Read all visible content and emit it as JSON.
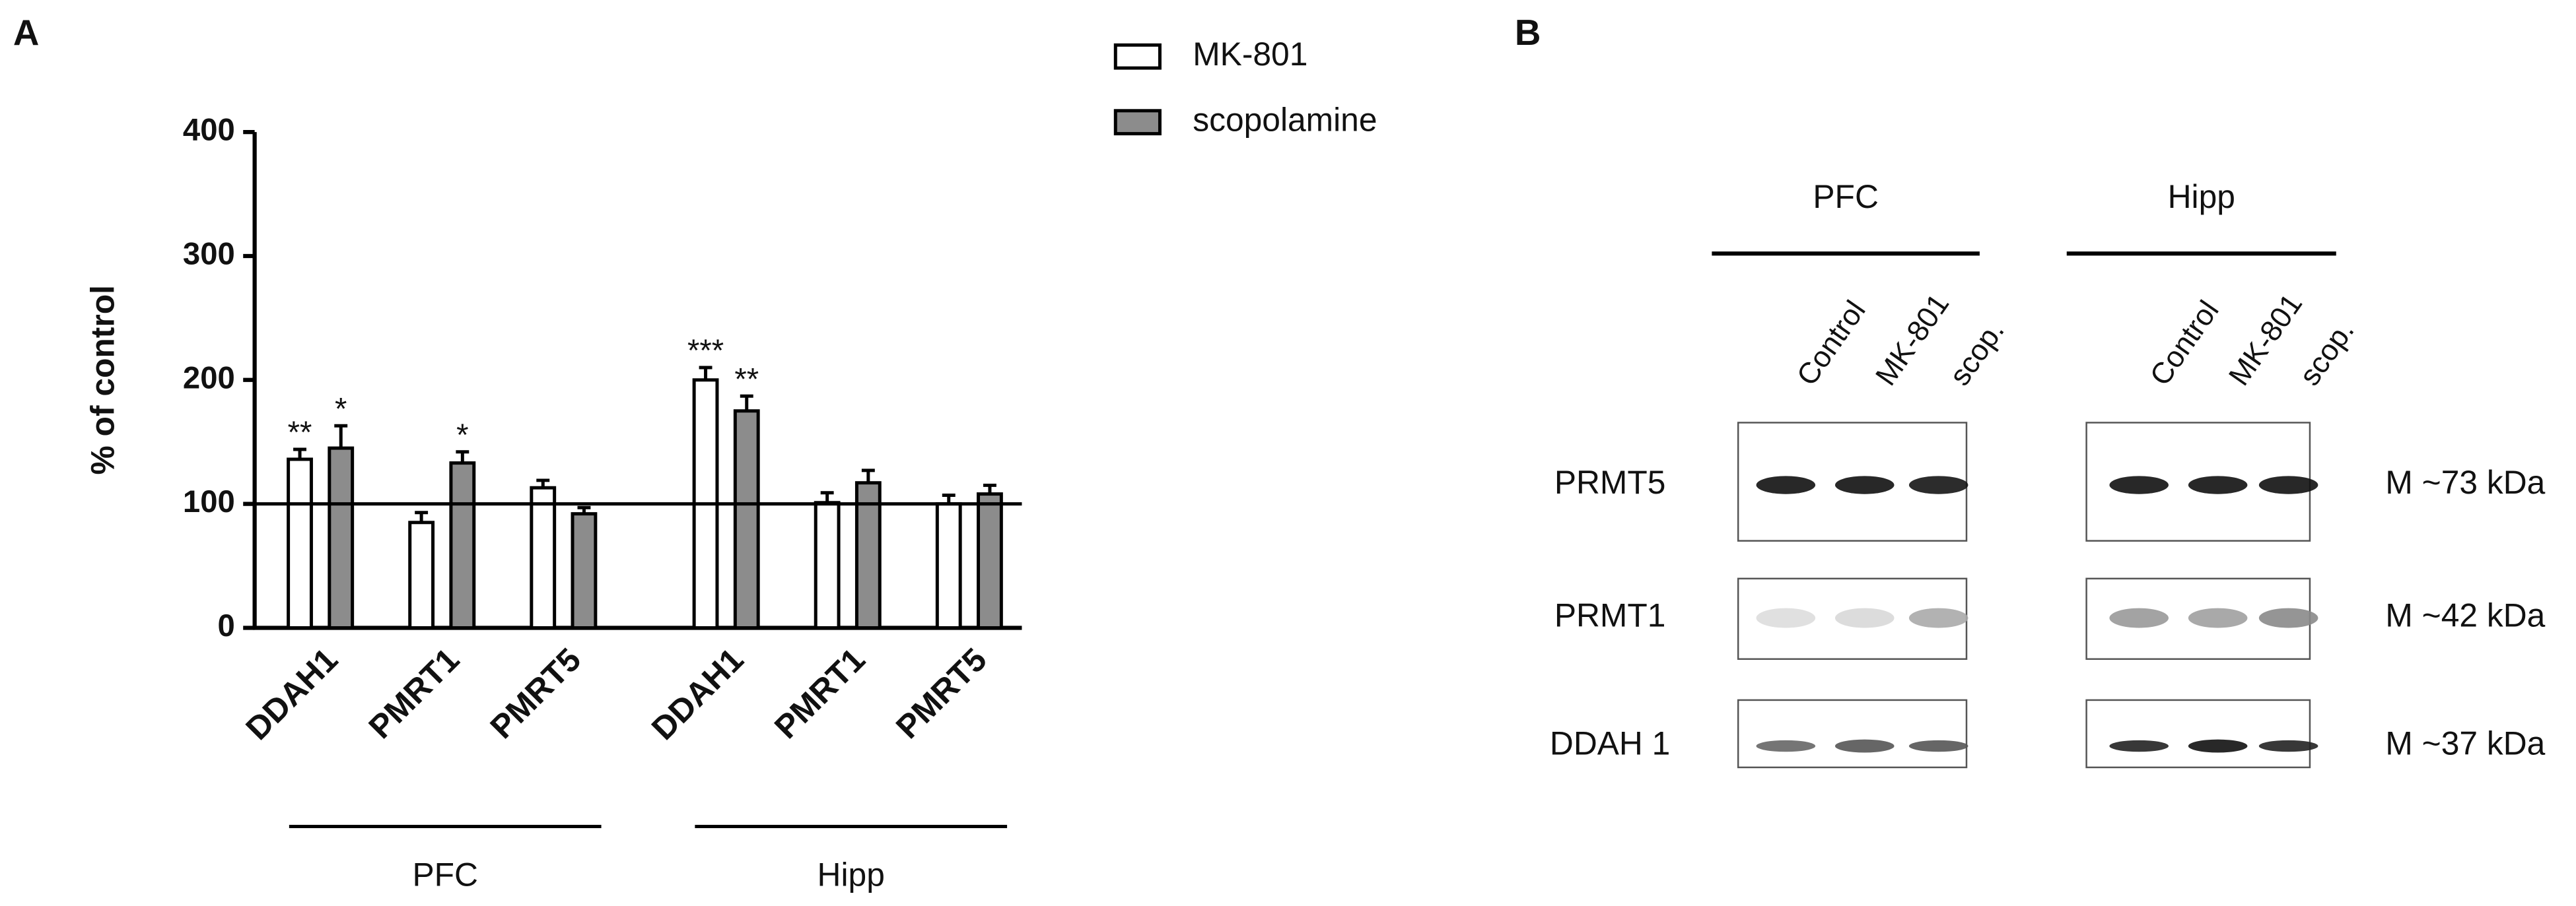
{
  "chart_data": {
    "type": "bar",
    "panel_label": "A",
    "ylabel": "% of control",
    "groups": [
      {
        "label": "PFC",
        "categories": [
          "DDAH1",
          "PMRT1",
          "PMRT5"
        ]
      },
      {
        "label": "Hipp",
        "categories": [
          "DDAH1",
          "PMRT1",
          "PMRT5"
        ]
      }
    ],
    "series": [
      {
        "name": "MK-801",
        "color": "#ffffff",
        "values": [
          136,
          85,
          113,
          200,
          101,
          100
        ],
        "errors": [
          8,
          8,
          6,
          10,
          8,
          7
        ],
        "significance": [
          "**",
          null,
          null,
          "***",
          null,
          null
        ]
      },
      {
        "name": "scopolamine",
        "color": "#8c8c8c",
        "values": [
          145,
          133,
          92,
          175,
          117,
          108
        ],
        "errors": [
          18,
          9,
          5,
          12,
          10,
          7
        ],
        "significance": [
          "*",
          "*",
          null,
          "**",
          null,
          null
        ]
      }
    ],
    "reference_line": 100,
    "ylim": [
      0,
      400
    ],
    "yticks": [
      0,
      100,
      200,
      300,
      400
    ],
    "grid": false,
    "legend": "top-right"
  },
  "blot": {
    "panel_label": "B",
    "groups": [
      {
        "label": "PFC",
        "lanes": [
          "Control",
          "MK-801",
          "scop."
        ]
      },
      {
        "label": "Hipp",
        "lanes": [
          "Control",
          "MK-801",
          "scop."
        ]
      }
    ],
    "rows": [
      {
        "protein": "PRMT5",
        "size": "M ~73 kDa"
      },
      {
        "protein": "PRMT1",
        "size": "M ~42 kDa"
      },
      {
        "protein": "DDAH 1",
        "size": "M ~37 kDa"
      }
    ]
  }
}
